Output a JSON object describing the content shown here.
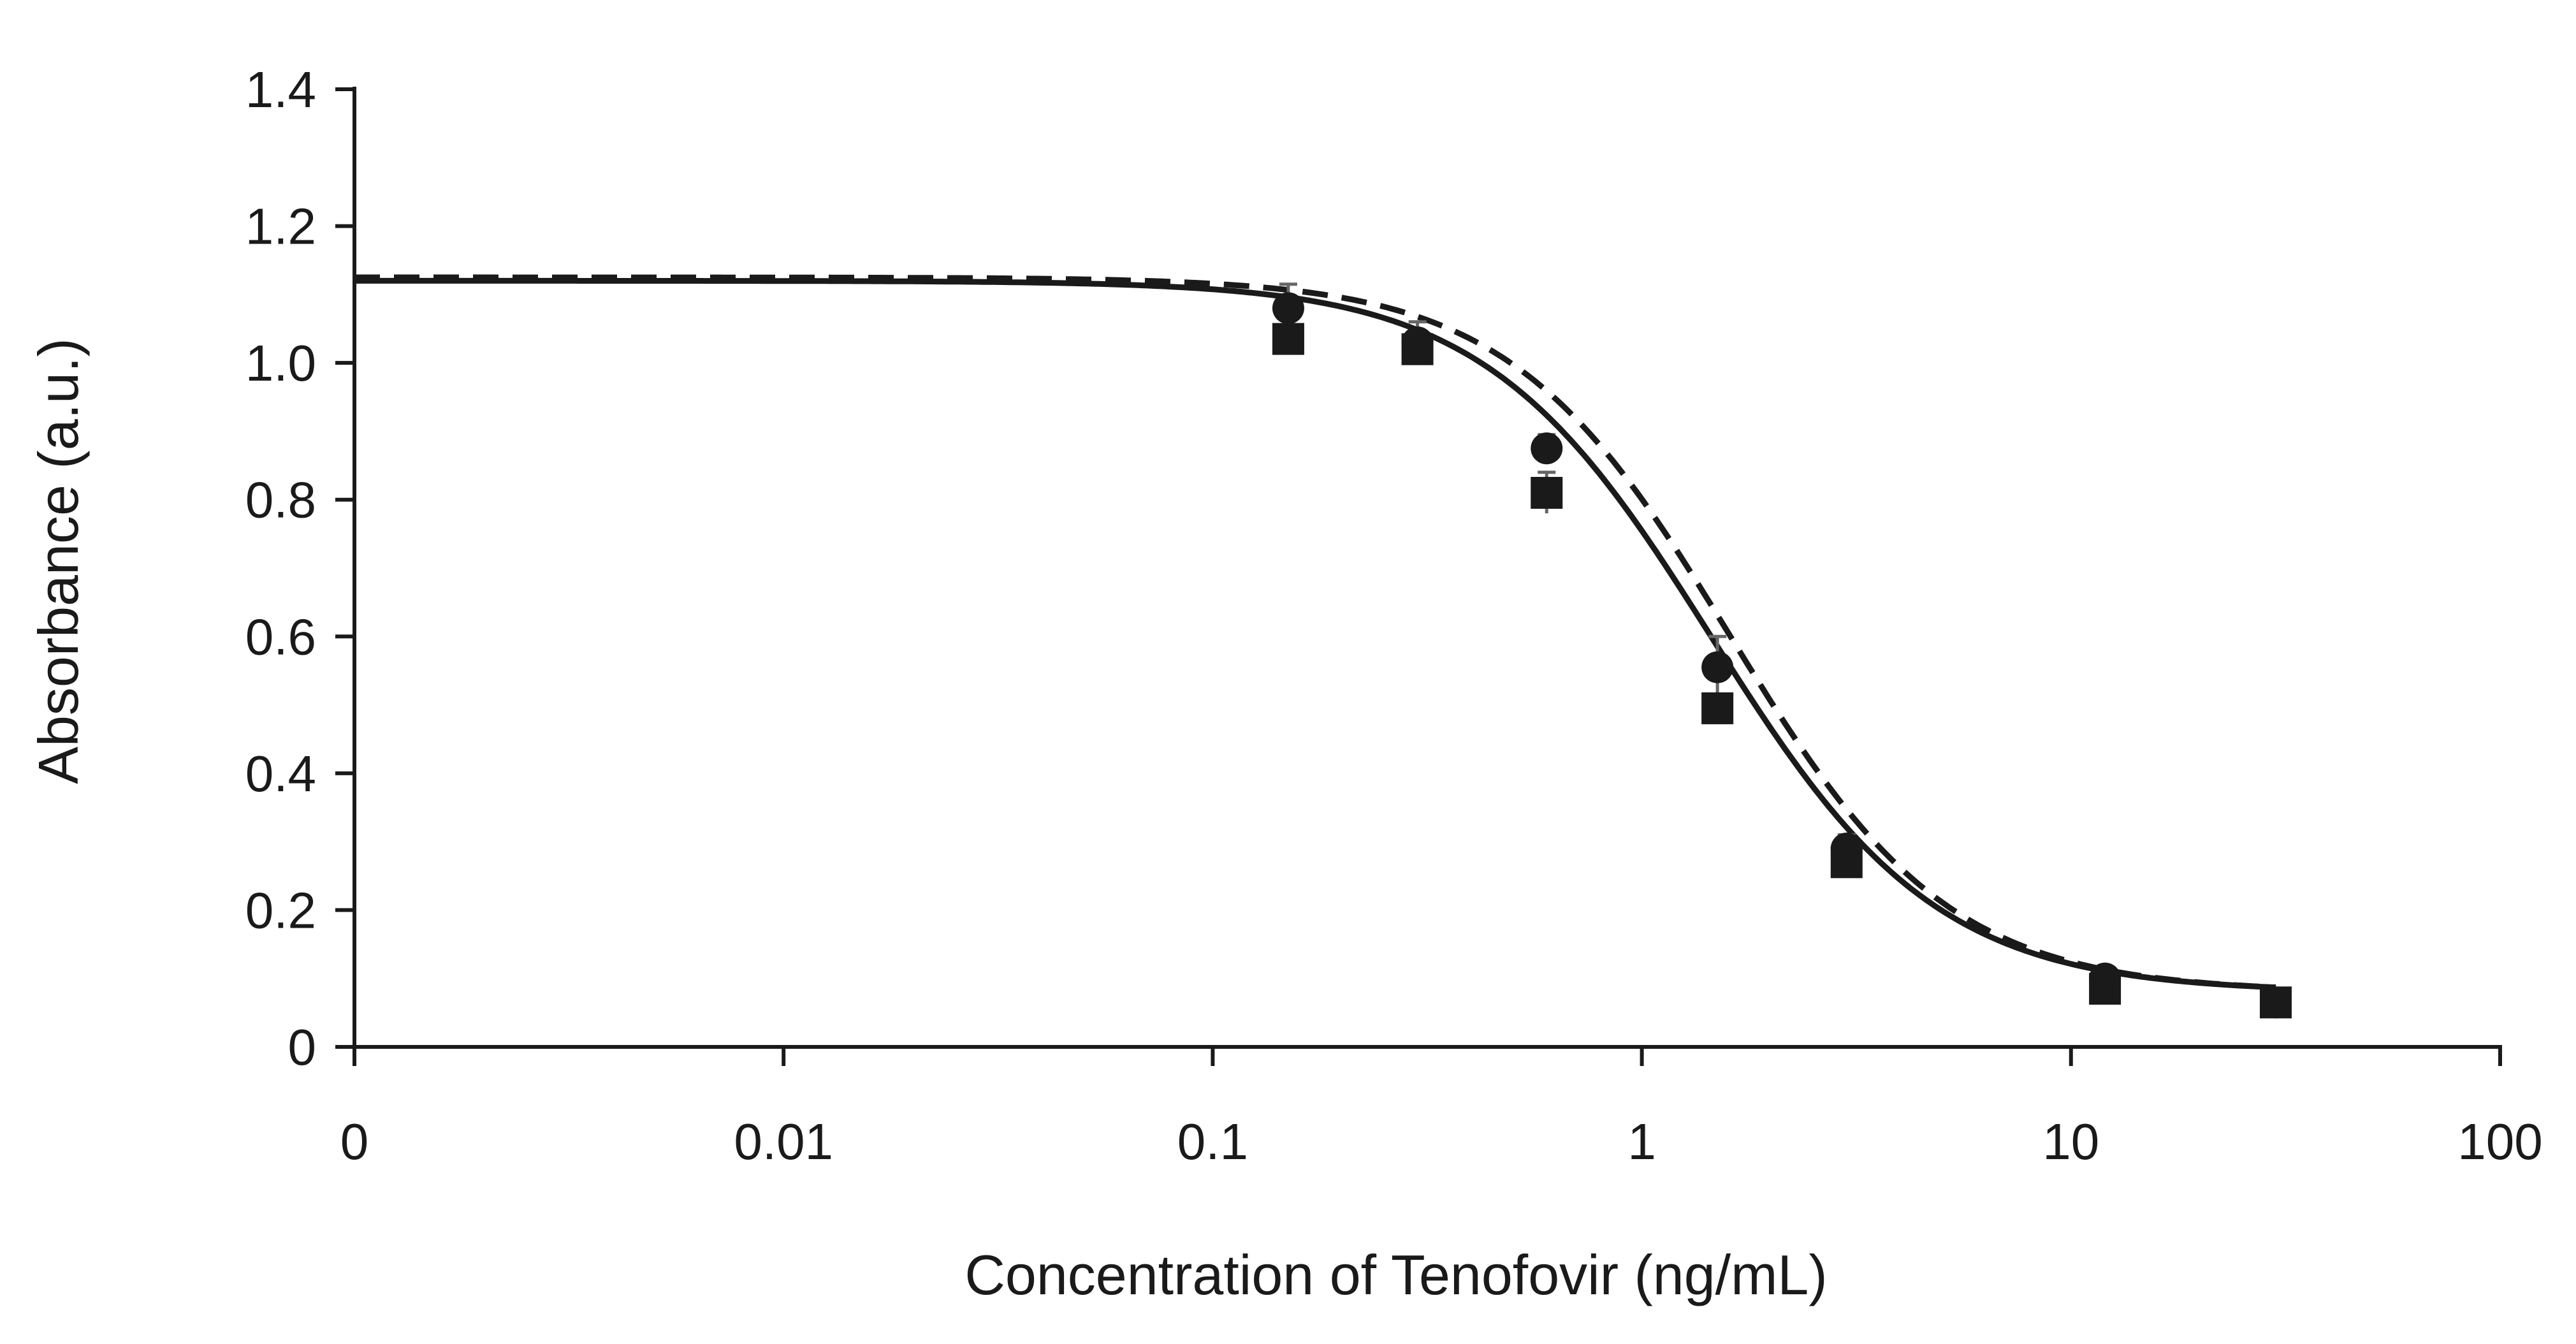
{
  "chart_data": {
    "type": "scatter",
    "title": "",
    "xlabel": "Concentration of Tenofovir (ng/mL)",
    "ylabel": "Absorbance (a.u.)",
    "x_scale": "log",
    "xlim": [
      0.001,
      100
    ],
    "ylim": [
      0,
      1.4
    ],
    "x_tick_values": [
      0.001,
      0.01,
      0.1,
      1,
      10,
      100
    ],
    "x_tick_labels": [
      "0",
      "0.01",
      "0.1",
      "1",
      "10",
      "100"
    ],
    "y_ticks": [
      0,
      0.2,
      0.4,
      0.6,
      0.8,
      1.0,
      1.2,
      1.4
    ],
    "y_tick_labels": [
      "0",
      "0.2",
      "0.4",
      "0.6",
      "0.8",
      "1.0",
      "1.2",
      "1.4"
    ],
    "grid": false,
    "legend": "none",
    "series": [
      {
        "name": "Circles (dashed fit)",
        "marker": "circle",
        "line_style": "dashed",
        "color": "#1a1a1a",
        "x": [
          0.15,
          0.3,
          0.6,
          1.5,
          3.0,
          12.0,
          30.0
        ],
        "values": [
          1.08,
          1.03,
          0.875,
          0.555,
          0.29,
          0.1,
          0.065
        ],
        "error": [
          0.035,
          0.03,
          0.02,
          0.045,
          0.02,
          0.01,
          0.01
        ],
        "fit": {
          "model": "4PL",
          "top": 1.125,
          "bottom": 0.08,
          "ec50": 1.6,
          "hill": 1.7
        }
      },
      {
        "name": "Squares (solid fit)",
        "marker": "square",
        "line_style": "solid",
        "color": "#1a1a1a",
        "x": [
          0.15,
          0.3,
          0.6,
          1.5,
          3.0,
          12.0,
          30.0
        ],
        "values": [
          1.035,
          1.02,
          0.81,
          0.495,
          0.27,
          0.085,
          0.065
        ],
        "error": [
          0.02,
          0.02,
          0.03,
          0.02,
          0.02,
          0.01,
          0.01
        ],
        "fit": {
          "model": "4PL",
          "top": 1.12,
          "bottom": 0.08,
          "ec50": 1.45,
          "hill": 1.65
        }
      }
    ]
  }
}
